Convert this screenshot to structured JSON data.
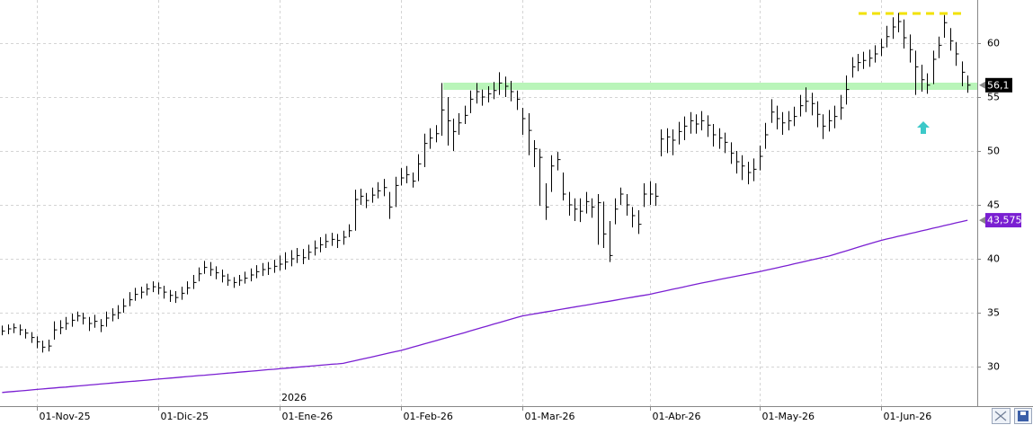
{
  "chart_data": {
    "type": "ohlc",
    "categories": [
      null,
      null,
      null,
      null,
      null,
      null,
      "01-Nov-25",
      null,
      null,
      null,
      null,
      null,
      null,
      null,
      null,
      null,
      null,
      null,
      null,
      null,
      null,
      null,
      null,
      null,
      null,
      null,
      null,
      "01-Dic-25",
      null,
      null,
      null,
      null,
      null,
      null,
      null,
      null,
      null,
      null,
      null,
      null,
      null,
      null,
      null,
      null,
      null,
      null,
      null,
      null,
      "01-Ene-26",
      null,
      null,
      null,
      null,
      null,
      null,
      null,
      null,
      null,
      null,
      null,
      null,
      null,
      null,
      null,
      null,
      null,
      null,
      null,
      null,
      "01-Feb-26",
      null,
      null,
      null,
      null,
      null,
      null,
      null,
      null,
      null,
      null,
      null,
      null,
      null,
      null,
      null,
      null,
      null,
      null,
      null,
      null,
      "01-Mar-26",
      null,
      null,
      null,
      null,
      null,
      null,
      null,
      null,
      null,
      null,
      null,
      null,
      null,
      null,
      null,
      null,
      null,
      null,
      null,
      null,
      null,
      "01-Abr-26",
      null,
      null,
      null,
      null,
      null,
      null,
      null,
      null,
      null,
      null,
      null,
      null,
      null,
      null,
      null,
      null,
      null,
      null,
      "01-May-26",
      null,
      null,
      null,
      null,
      null,
      null,
      null,
      null,
      null,
      null,
      null,
      null,
      null,
      null,
      null,
      null,
      null,
      null,
      null,
      null,
      "01-Jun-26",
      null,
      null,
      null,
      null,
      null,
      null,
      null,
      null,
      null,
      null,
      null,
      null,
      null,
      null,
      null
    ],
    "year_label": "2026",
    "ylim": [
      26.33,
      64
    ],
    "yticks": [
      30,
      35,
      40,
      45,
      50,
      55,
      60
    ],
    "grid": true,
    "series": [
      {
        "type": "bars",
        "color": "#000000",
        "high": [
          33.8,
          33.9,
          34.0,
          33.9,
          33.5,
          33.2,
          32.8,
          32.4,
          32.5,
          34.2,
          34.3,
          34.6,
          34.9,
          35.1,
          35.0,
          34.6,
          34.8,
          34.4,
          35.1,
          35.4,
          35.7,
          36.3,
          36.9,
          37.3,
          37.4,
          37.7,
          37.9,
          37.8,
          37.5,
          37.1,
          37.0,
          37.4,
          37.9,
          38.5,
          39.2,
          39.8,
          39.7,
          39.3,
          39.0,
          38.6,
          38.3,
          38.5,
          38.8,
          39.1,
          39.4,
          39.6,
          39.7,
          39.9,
          40.3,
          40.6,
          40.8,
          41.0,
          40.9,
          41.3,
          41.7,
          42.0,
          42.3,
          42.4,
          42.3,
          42.6,
          43.2,
          46.4,
          46.5,
          46.1,
          46.6,
          47.1,
          47.4,
          46.2,
          47.6,
          48.4,
          48.6,
          48.0,
          49.7,
          51.6,
          52.1,
          52.4,
          56.3,
          55.0,
          53.0,
          53.5,
          54.2,
          55.6,
          56.3,
          55.7,
          56.0,
          56.4,
          57.3,
          56.9,
          56.5,
          55.6,
          54.0,
          53.5,
          51.0,
          50.2,
          47.0,
          49.6,
          49.9,
          48.0,
          46.2,
          45.6,
          45.6,
          46.2,
          45.6,
          46.0,
          45.3,
          43.5,
          45.6,
          46.6,
          46.0,
          44.8,
          44.5,
          47.0,
          47.2,
          47.0,
          52.0,
          52.1,
          52.0,
          52.7,
          53.2,
          53.6,
          53.4,
          53.7,
          53.3,
          52.5,
          52.1,
          51.7,
          50.8,
          50.0,
          49.6,
          49.0,
          49.3,
          50.5,
          52.6,
          54.8,
          54.2,
          53.6,
          53.7,
          54.1,
          55.2,
          55.9,
          55.4,
          54.6,
          53.4,
          53.8,
          54.2,
          55.2,
          57.0,
          58.7,
          59.0,
          59.2,
          59.4,
          59.8,
          60.4,
          61.6,
          62.4,
          62.8,
          62.2,
          60.8,
          59.3,
          58.0,
          57.2,
          59.3,
          60.6,
          62.6,
          61.4,
          60.1,
          58.3,
          57.0
        ],
        "low": [
          32.9,
          33.0,
          33.1,
          32.9,
          32.6,
          32.2,
          31.7,
          31.3,
          31.4,
          32.5,
          33.0,
          33.4,
          33.7,
          34.2,
          33.9,
          33.3,
          33.6,
          33.2,
          33.7,
          34.2,
          34.4,
          35.0,
          35.6,
          36.1,
          36.3,
          36.6,
          36.9,
          36.7,
          36.3,
          36.0,
          35.9,
          36.2,
          36.7,
          37.2,
          37.9,
          38.6,
          38.4,
          38.1,
          37.8,
          37.5,
          37.3,
          37.5,
          37.7,
          37.9,
          38.2,
          38.4,
          38.5,
          38.7,
          38.9,
          39.0,
          39.3,
          39.6,
          39.5,
          39.9,
          40.3,
          40.6,
          41.0,
          41.2,
          41.0,
          41.3,
          42.0,
          42.6,
          45.0,
          44.7,
          45.2,
          45.6,
          45.8,
          43.7,
          44.8,
          46.8,
          47.0,
          46.6,
          47.2,
          48.5,
          50.2,
          50.8,
          51.4,
          50.5,
          50.0,
          51.5,
          52.5,
          53.5,
          54.4,
          54.2,
          54.5,
          54.8,
          55.2,
          55.0,
          54.6,
          53.8,
          51.5,
          49.6,
          48.5,
          44.9,
          43.6,
          46.2,
          48.2,
          45.4,
          44.0,
          43.5,
          43.4,
          44.2,
          43.8,
          41.3,
          41.0,
          39.7,
          43.2,
          45.0,
          44.0,
          42.9,
          42.3,
          44.8,
          45.0,
          44.9,
          49.5,
          49.8,
          49.6,
          50.6,
          51.0,
          51.6,
          51.6,
          51.9,
          51.3,
          50.4,
          50.2,
          49.8,
          48.8,
          47.9,
          47.3,
          46.9,
          47.2,
          48.2,
          50.2,
          52.6,
          52.0,
          51.5,
          51.9,
          52.3,
          53.2,
          53.6,
          53.3,
          52.2,
          51.1,
          51.8,
          52.1,
          52.9,
          54.3,
          56.8,
          57.4,
          57.6,
          57.8,
          58.2,
          58.8,
          59.6,
          60.4,
          61.0,
          59.5,
          58.2,
          55.2,
          55.5,
          55.3,
          56.2,
          58.6,
          60.5,
          59.3,
          57.9,
          56.0,
          55.4
        ],
        "close": [
          33.3,
          33.5,
          33.6,
          33.4,
          33.1,
          32.7,
          32.3,
          31.8,
          31.9,
          33.4,
          33.6,
          34.0,
          34.3,
          34.7,
          34.5,
          34.0,
          34.2,
          33.8,
          34.5,
          34.8,
          35.0,
          35.6,
          36.2,
          36.7,
          36.9,
          37.2,
          37.4,
          37.3,
          36.9,
          36.6,
          36.4,
          36.8,
          37.3,
          37.8,
          38.6,
          39.2,
          39.0,
          38.7,
          38.4,
          38.0,
          37.8,
          38.0,
          38.2,
          38.5,
          38.8,
          39.0,
          39.1,
          39.3,
          39.5,
          39.7,
          40.0,
          40.3,
          40.1,
          40.6,
          41.0,
          41.3,
          41.6,
          41.8,
          41.7,
          42.0,
          42.6,
          45.5,
          45.8,
          45.4,
          45.9,
          46.3,
          46.6,
          44.8,
          46.8,
          47.5,
          47.8,
          47.2,
          48.8,
          50.7,
          51.2,
          51.6,
          53.8,
          52.8,
          51.8,
          52.6,
          53.3,
          54.8,
          55.5,
          55.0,
          55.3,
          55.6,
          56.3,
          56.0,
          55.5,
          54.8,
          53.0,
          51.9,
          50.2,
          49.4,
          44.8,
          48.6,
          49.2,
          46.0,
          45.0,
          44.6,
          44.4,
          45.3,
          44.8,
          45.2,
          42.3,
          40.3,
          44.6,
          46.0,
          45.0,
          44.0,
          43.2,
          46.0,
          46.0,
          45.8,
          51.1,
          51.3,
          51.0,
          51.8,
          52.3,
          52.8,
          52.5,
          52.8,
          52.4,
          51.5,
          51.2,
          50.8,
          49.8,
          49.0,
          48.6,
          48.0,
          48.3,
          49.5,
          51.5,
          53.6,
          53.0,
          52.6,
          52.8,
          53.2,
          54.2,
          54.6,
          54.4,
          53.4,
          52.3,
          52.8,
          53.2,
          54.0,
          55.7,
          57.8,
          58.2,
          58.4,
          58.6,
          59.0,
          59.6,
          60.6,
          61.5,
          62.0,
          60.5,
          59.4,
          57.8,
          56.6,
          56.1,
          58.5,
          59.8,
          61.9,
          60.2,
          59.0,
          57.3,
          56.1
        ]
      },
      {
        "type": "line",
        "color": "#7a1fd2",
        "values": [
          27.6,
          27.65,
          27.69,
          27.74,
          27.78,
          27.83,
          27.88,
          27.92,
          27.97,
          28.01,
          28.06,
          28.1,
          28.15,
          28.2,
          28.24,
          28.29,
          28.33,
          28.38,
          28.42,
          28.47,
          28.52,
          28.56,
          28.61,
          28.65,
          28.7,
          28.74,
          28.79,
          28.84,
          28.88,
          28.93,
          28.97,
          29.02,
          29.07,
          29.11,
          29.16,
          29.2,
          29.25,
          29.29,
          29.34,
          29.39,
          29.43,
          29.48,
          29.52,
          29.57,
          29.61,
          29.66,
          29.71,
          29.75,
          29.8,
          29.85,
          29.89,
          29.94,
          29.98,
          30.03,
          30.07,
          30.12,
          30.16,
          30.21,
          30.25,
          30.3,
          30.42,
          30.54,
          30.66,
          30.78,
          30.9,
          31.02,
          31.14,
          31.26,
          31.38,
          31.5,
          31.65,
          31.8,
          31.95,
          32.1,
          32.25,
          32.4,
          32.55,
          32.7,
          32.85,
          33.0,
          33.15,
          33.31,
          33.46,
          33.62,
          33.77,
          33.93,
          34.08,
          34.24,
          34.39,
          34.55,
          34.7,
          34.79,
          34.88,
          34.97,
          35.06,
          35.15,
          35.25,
          35.34,
          35.43,
          35.52,
          35.61,
          35.7,
          35.79,
          35.88,
          35.97,
          36.06,
          36.15,
          36.25,
          36.34,
          36.43,
          36.52,
          36.61,
          36.7,
          36.82,
          36.93,
          37.05,
          37.17,
          37.28,
          37.4,
          37.52,
          37.63,
          37.75,
          37.86,
          37.96,
          38.07,
          38.17,
          38.28,
          38.38,
          38.49,
          38.59,
          38.7,
          38.8,
          38.92,
          39.04,
          39.16,
          39.28,
          39.4,
          39.53,
          39.65,
          39.77,
          39.89,
          40.01,
          40.13,
          40.25,
          40.41,
          40.57,
          40.73,
          40.89,
          41.06,
          41.22,
          41.38,
          41.54,
          41.7,
          41.83,
          41.95,
          42.08,
          42.2,
          42.33,
          42.45,
          42.58,
          42.7,
          42.83,
          42.95,
          43.08,
          43.2,
          43.33,
          43.45,
          43.575
        ]
      }
    ],
    "price_marker": {
      "value": 56.1,
      "label": "56,1",
      "color": "#000000"
    },
    "ma_marker": {
      "value": 43.575,
      "label": "43,575",
      "color": "#7a1fd2"
    },
    "levels": [
      {
        "value": 56,
        "color": "#b9f5b9"
      },
      {
        "value": 62.75,
        "color": "#f2e200"
      }
    ]
  }
}
